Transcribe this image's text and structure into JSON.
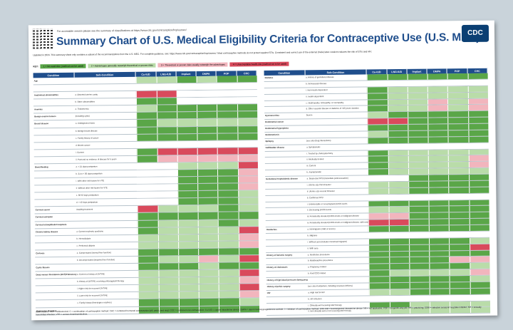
{
  "header": {
    "accessible_note": "For accessible version please see the summary of classifications at https://www.cdc.gov/contraception/hcp/usmec/",
    "title": "Summary Chart of U.S. Medical Eligibility Criteria for Contraceptive Use (U.S. MEC)",
    "logo": "CDC",
    "update_note": "Updated in 2024. This summary sheet only contains a subset of the recommendations from the U.S. MEC. For complete guidance, see: https://www.cdc.gov/contraception/hcp/usmec/. Most contraceptive methods do not protect against STIs. Consistent and correct use of the external (male) latex condom reduces the risk of STIs and HIV."
  },
  "key": {
    "label": "KEY:",
    "items": [
      {
        "text": "1 = No restriction (method can be used)",
        "color": "#5aa648"
      },
      {
        "text": "2 = Advantages generally outweigh theoretical or proven risks",
        "color": "#b9dca9"
      },
      {
        "text": "3 = Theoretical or proven risks usually outweigh the advantages",
        "color": "#f2b5bd"
      },
      {
        "text": "4 = Unacceptable health risk (method not to be used)",
        "color": "#d94a5c"
      }
    ]
  },
  "columns": [
    "Condition",
    "Sub-Condition",
    "Cu-IUD",
    "LNG-IUD",
    "Implant",
    "DMPA",
    "POP",
    "CHC"
  ],
  "left_table": [
    {
      "cond": "Age",
      "sub": "",
      "cells": [
        "lg",
        "lg",
        "g",
        "lg",
        "g",
        "g"
      ]
    },
    {
      "cond": "",
      "sub": "",
      "cells": [
        "wh",
        "wh",
        "wh",
        "wh",
        "wh",
        "wh"
      ]
    },
    {
      "cond": "Anatomical abnormalities",
      "sub": "a. Distorted uterine cavity",
      "cells": [
        "rd",
        "rd",
        "wh",
        "wh",
        "wh",
        "wh"
      ]
    },
    {
      "cond": "",
      "sub": "b. Other abnormalities",
      "cells": [
        "g",
        "g",
        "wh",
        "wh",
        "wh",
        "wh"
      ]
    },
    {
      "cond": "Anemias",
      "sub": "a. Thalassemia",
      "cells": [
        "lg",
        "g",
        "g",
        "g",
        "g",
        "g"
      ]
    },
    {
      "cond": "Benign ovarian tumors",
      "sub": "(including cysts)",
      "cells": [
        "g",
        "g",
        "g",
        "g",
        "g",
        "g"
      ]
    },
    {
      "cond": "Breast disease",
      "sub": "a. Undiagnosed mass",
      "cells": [
        "g",
        "lg",
        "lg",
        "lg",
        "lg",
        "lg"
      ]
    },
    {
      "cond": "",
      "sub": "b. Benign breast disease",
      "cells": [
        "g",
        "g",
        "g",
        "g",
        "g",
        "g"
      ]
    },
    {
      "cond": "",
      "sub": "c. Family history of cancer",
      "cells": [
        "g",
        "g",
        "g",
        "g",
        "g",
        "g"
      ]
    },
    {
      "cond": "",
      "sub": "d. Breast cancer",
      "cells": [
        "wh",
        "wh",
        "wh",
        "wh",
        "wh",
        "wh"
      ]
    },
    {
      "cond": "",
      "sub": "i. Current",
      "cells": [
        "g",
        "rd",
        "rd",
        "rd",
        "rd",
        "rd"
      ]
    },
    {
      "cond": "",
      "sub": "ii. Past and no evidence of disease for 5 years",
      "cells": [
        "g",
        "pk",
        "pk",
        "pk",
        "pk",
        "pk"
      ]
    },
    {
      "cond": "Breastfeeding",
      "sub": "a. < 21 days postpartum",
      "cells": [
        "wh",
        "wh",
        "lg",
        "lg",
        "lg",
        "rd"
      ]
    },
    {
      "cond": "",
      "sub": "b. 21 to < 30 days postpartum",
      "cells": [
        "wh",
        "wh",
        "g",
        "g",
        "g",
        "pk"
      ]
    },
    {
      "cond": "",
      "sub": "i. With other risk factors for VTE",
      "cells": [
        "wh",
        "wh",
        "g",
        "g",
        "g",
        "pk"
      ]
    },
    {
      "cond": "",
      "sub": "ii. Without other risk factors for VTE",
      "cells": [
        "wh",
        "wh",
        "g",
        "g",
        "g",
        "pk"
      ]
    },
    {
      "cond": "",
      "sub": "c. 30-42 days postpartum",
      "cells": [
        "wh",
        "wh",
        "g",
        "g",
        "g",
        "lg"
      ]
    },
    {
      "cond": "",
      "sub": "d. > 42 days postpartum",
      "cells": [
        "wh",
        "wh",
        "g",
        "g",
        "g",
        "lg"
      ]
    },
    {
      "cond": "Cervical cancer",
      "sub": "Awaiting treatment",
      "cells": [
        "rd",
        "lg",
        "lg",
        "lg",
        "g",
        "lg"
      ]
    },
    {
      "cond": "Cervical ectropion",
      "sub": "",
      "cells": [
        "g",
        "g",
        "g",
        "g",
        "g",
        "g"
      ]
    },
    {
      "cond": "Cervical intraepithelial neoplasia",
      "sub": "",
      "cells": [
        "g",
        "lg",
        "lg",
        "lg",
        "g",
        "lg"
      ]
    },
    {
      "cond": "Chronic kidney disease",
      "sub": "a. Current nephrotic syndrome",
      "cells": [
        "g",
        "lg",
        "lg",
        "lg",
        "lg",
        "rd"
      ]
    },
    {
      "cond": "",
      "sub": "b. Hemodialysis",
      "cells": [
        "lg",
        "lg",
        "lg",
        "lg",
        "lg",
        "pk"
      ]
    },
    {
      "cond": "",
      "sub": "c. Peritoneal dialysis",
      "cells": [
        "lg",
        "lg",
        "lg",
        "lg",
        "lg",
        "pk"
      ]
    },
    {
      "cond": "Cirrhosis",
      "sub": "a. Compensated (normal liver function)",
      "cells": [
        "g",
        "g",
        "g",
        "g",
        "g",
        "g"
      ]
    },
    {
      "cond": "",
      "sub": "b. Decompensated (impaired liver function)",
      "cells": [
        "g",
        "lg",
        "lg",
        "pk",
        "lg",
        "rd"
      ]
    },
    {
      "cond": "Cystic fibrosis",
      "sub": "",
      "cells": [
        "g",
        "g",
        "g",
        "lg",
        "g",
        "g"
      ]
    },
    {
      "cond": "Deep venous thrombosis (DVT)/Pulmonary embolism (PE)",
      "sub": "a. Current or history of DVT/PE",
      "cells": [
        "lg",
        "lg",
        "lg",
        "lg",
        "lg",
        "rd"
      ]
    },
    {
      "cond": "",
      "sub": "b. History of DVT/PE, receiving anticoagulant therapy",
      "cells": [
        "lg",
        "lg",
        "lg",
        "lg",
        "lg",
        "pk"
      ]
    },
    {
      "cond": "",
      "sub": "i. Higher risk for recurrent DVT/PE",
      "cells": [
        "lg",
        "lg",
        "lg",
        "lg",
        "lg",
        "rd"
      ]
    },
    {
      "cond": "",
      "sub": "ii. Lower risk for recurrent DVT/PE",
      "cells": [
        "lg",
        "lg",
        "lg",
        "lg",
        "lg",
        "pk"
      ]
    },
    {
      "cond": "",
      "sub": "c. Family history (first-degree relatives)",
      "cells": [
        "g",
        "g",
        "g",
        "g",
        "g",
        "lg"
      ]
    },
    {
      "cond": "Depressive disorders",
      "sub": "",
      "cells": [
        "g",
        "g",
        "g",
        "g",
        "g",
        "g"
      ]
    }
  ],
  "right_table": [
    {
      "cond": "Diabetes",
      "sub": "a. History of gestational disease",
      "cells": [
        "g",
        "g",
        "g",
        "g",
        "g",
        "g"
      ]
    },
    {
      "cond": "",
      "sub": "b. Nonvascular disease",
      "cells": [
        "wh",
        "wh",
        "wh",
        "wh",
        "wh",
        "wh"
      ]
    },
    {
      "cond": "",
      "sub": "i. Non-insulin dependent",
      "cells": [
        "g",
        "lg",
        "lg",
        "lg",
        "lg",
        "lg"
      ]
    },
    {
      "cond": "",
      "sub": "ii. Insulin dependent",
      "cells": [
        "g",
        "lg",
        "lg",
        "lg",
        "lg",
        "lg"
      ]
    },
    {
      "cond": "",
      "sub": "c. Nephropathy, retinopathy, or neuropathy",
      "cells": [
        "g",
        "lg",
        "lg",
        "pk",
        "lg",
        "pk"
      ]
    },
    {
      "cond": "",
      "sub": "d. Other vascular disease or diabetes of >20 years' duration",
      "cells": [
        "g",
        "lg",
        "lg",
        "pk",
        "lg",
        "pk"
      ]
    },
    {
      "cond": "Dysmenorrhea",
      "sub": "Severe",
      "cells": [
        "lg",
        "g",
        "g",
        "g",
        "g",
        "g"
      ]
    },
    {
      "cond": "Endometrial cancer",
      "sub": "",
      "cells": [
        "rd",
        "rd",
        "g",
        "g",
        "g",
        "g"
      ]
    },
    {
      "cond": "Endometrial hyperplasia",
      "sub": "",
      "cells": [
        "g",
        "g",
        "g",
        "g",
        "g",
        "g"
      ]
    },
    {
      "cond": "Endometriosis",
      "sub": "",
      "cells": [
        "lg",
        "g",
        "g",
        "g",
        "g",
        "g"
      ]
    },
    {
      "cond": "Epilepsy",
      "sub": "(see also Drug Interactions)",
      "cells": [
        "g",
        "g",
        "g",
        "g",
        "g",
        "g"
      ]
    },
    {
      "cond": "Gallbladder disease",
      "sub": "a. Symptomatic",
      "cells": [
        "wh",
        "wh",
        "wh",
        "wh",
        "wh",
        "wh"
      ]
    },
    {
      "cond": "",
      "sub": "i. Treated by cholecystectomy",
      "cells": [
        "g",
        "lg",
        "lg",
        "lg",
        "lg",
        "lg"
      ]
    },
    {
      "cond": "",
      "sub": "ii. Medically treated",
      "cells": [
        "g",
        "lg",
        "lg",
        "lg",
        "lg",
        "pk"
      ]
    },
    {
      "cond": "",
      "sub": "iii. Current",
      "cells": [
        "g",
        "lg",
        "lg",
        "lg",
        "lg",
        "pk"
      ]
    },
    {
      "cond": "",
      "sub": "b. Asymptomatic",
      "cells": [
        "g",
        "lg",
        "lg",
        "lg",
        "lg",
        "lg"
      ]
    },
    {
      "cond": "Gestational trophoblastic disease",
      "sub": "a. Suspected GTD (immediate postevacuation)",
      "cells": [
        "wh",
        "wh",
        "g",
        "g",
        "g",
        "g"
      ]
    },
    {
      "cond": "",
      "sub": "i. Uterine size first trimester",
      "cells": [
        "lg",
        "lg",
        "g",
        "g",
        "g",
        "g"
      ]
    },
    {
      "cond": "",
      "sub": "ii. Uterine size second trimester",
      "cells": [
        "lg",
        "lg",
        "g",
        "g",
        "g",
        "g"
      ]
    },
    {
      "cond": "",
      "sub": "b. Confirmed GTD",
      "cells": [
        "wh",
        "wh",
        "wh",
        "wh",
        "wh",
        "wh"
      ]
    },
    {
      "cond": "",
      "sub": "i. Undetectable or non-pregnant β-hCG levels",
      "cells": [
        "g",
        "g",
        "g",
        "g",
        "g",
        "g"
      ]
    },
    {
      "cond": "",
      "sub": "ii. Decreasing β-hCG levels",
      "cells": [
        "lg",
        "lg",
        "g",
        "g",
        "g",
        "g"
      ]
    },
    {
      "cond": "",
      "sub": "iii. Persistently elevated β-hCG levels or malignant disease",
      "cells": [
        "pk",
        "pk",
        "g",
        "g",
        "g",
        "g"
      ]
    },
    {
      "cond": "",
      "sub": "iv. Persistently elevated β-hCG levels or malignant disease, with evidence or suspicion of intrauterine disease",
      "cells": [
        "rd",
        "rd",
        "g",
        "g",
        "g",
        "g"
      ]
    },
    {
      "cond": "Headaches",
      "sub": "a. Nonmigraine (mild or severe)",
      "cells": [
        "g",
        "g",
        "g",
        "g",
        "g",
        "g"
      ]
    },
    {
      "cond": "",
      "sub": "b. Migraine",
      "cells": [
        "wh",
        "wh",
        "wh",
        "wh",
        "wh",
        "wh"
      ]
    },
    {
      "cond": "",
      "sub": "i. Without aura (includes menstrual migraine)",
      "cells": [
        "g",
        "g",
        "g",
        "g",
        "g",
        "lg"
      ]
    },
    {
      "cond": "",
      "sub": "ii. With aura",
      "cells": [
        "g",
        "g",
        "g",
        "g",
        "g",
        "rd"
      ]
    },
    {
      "cond": "History of bariatric surgery",
      "sub": "a. Restrictive procedures",
      "cells": [
        "g",
        "g",
        "g",
        "g",
        "g",
        "g"
      ]
    },
    {
      "cond": "",
      "sub": "b. Malabsorptive procedures",
      "cells": [
        "g",
        "g",
        "g",
        "g",
        "pk",
        "pk"
      ]
    },
    {
      "cond": "History of cholestasis",
      "sub": "a. Pregnancy related",
      "cells": [
        "g",
        "g",
        "g",
        "g",
        "g",
        "lg"
      ]
    },
    {
      "cond": "",
      "sub": "b. Past COC related",
      "cells": [
        "g",
        "lg",
        "lg",
        "lg",
        "lg",
        "pk"
      ]
    },
    {
      "cond": "History of high blood pressure during pregnancy",
      "sub": "",
      "cells": [
        "g",
        "g",
        "g",
        "g",
        "g",
        "lg"
      ]
    },
    {
      "cond": "History of pelvic surgery",
      "sub": "(see also Postpartum, including cesarean delivery)",
      "cells": [
        "g",
        "g",
        "g",
        "g",
        "g",
        "g"
      ]
    },
    {
      "cond": "HIV",
      "sub": "a. High risk for HIV",
      "cells": [
        "lg",
        "lg",
        "g",
        "g",
        "g",
        "g"
      ]
    },
    {
      "cond": "",
      "sub": "b. HIV infection",
      "cells": [
        "wh",
        "wh",
        "wh",
        "wh",
        "wh",
        "wh"
      ]
    },
    {
      "cond": "",
      "sub": "i. Clinically well receiving ARV therapy",
      "cells": [
        "g",
        "g",
        "lg",
        "lg",
        "lg",
        "lg"
      ]
    },
    {
      "cond": "",
      "sub": "ii. Not clinically well or not receiving ARV therapy",
      "cells": [
        "lg",
        "lg",
        "lg",
        "lg",
        "lg",
        "lg"
      ]
    }
  ],
  "abbreviations": "Abbreviations: ARV = antiretroviral; C = continuation of contraceptive method; CHC = combined hormonal contraception (pill, patch, and ring); COC = combined oral contraceptive; Cu-IUD = copper intrauterine device; DMPA = depot medroxyprogesterone acetate; I = initiation of contraceptive method; LNG-IUD = levonorgestrel intrauterine device; NA = not applicable; POP = progestin-only pill; P/R = patch/ring; SSRI = selective serotonin reuptake inhibitor; STI = sexually transmitted infection; VTE = venous thromboembolism."
}
